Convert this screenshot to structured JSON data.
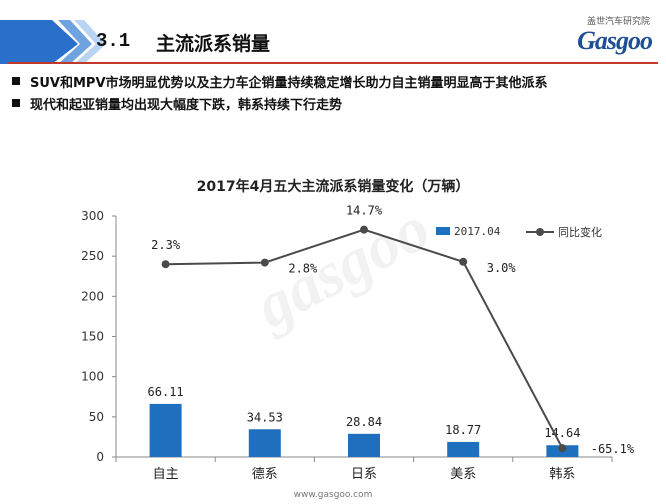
{
  "header": {
    "section_number": "3.1",
    "section_title": "主流派系销量",
    "brand_cn": "盖世汽车研究院",
    "brand_logo": "Gasgoo",
    "accent_color": "#2a6fc9",
    "rule_color": "#c0392b"
  },
  "bullets": [
    "SUV和MPV市场明显优势以及主力车企销量持续稳定增长助力自主销量明显高于其他派系",
    "现代和起亚销量均出现大幅度下跌，韩系持续下行走势"
  ],
  "footer": {
    "url": "www.gasgoo.com"
  },
  "chart_data": {
    "type": "bar",
    "title": "2017年4月五大主流派系销量变化（万辆）",
    "categories": [
      "自主",
      "德系",
      "日系",
      "美系",
      "韩系"
    ],
    "series": [
      {
        "name": "2017.04",
        "type": "bar",
        "color": "#1f6fbf",
        "values": [
          66.11,
          34.53,
          28.84,
          18.77,
          14.64
        ],
        "labels": [
          "66.11",
          "34.53",
          "28.84",
          "18.77",
          "14.64"
        ]
      },
      {
        "name": "同比变化",
        "type": "line",
        "color": "#4a4a4a",
        "values": [
          2.3,
          2.8,
          14.7,
          3.0,
          -65.1
        ],
        "labels": [
          "2.3%",
          "2.8%",
          "14.7%",
          "3.0%",
          "-65.1%"
        ],
        "plot_values": [
          240,
          242,
          283,
          243,
          11
        ]
      }
    ],
    "ylim": [
      0,
      300
    ],
    "yticks": [
      0,
      50,
      100,
      150,
      200,
      250,
      300
    ],
    "legend_position": "top-right",
    "grid": false
  }
}
